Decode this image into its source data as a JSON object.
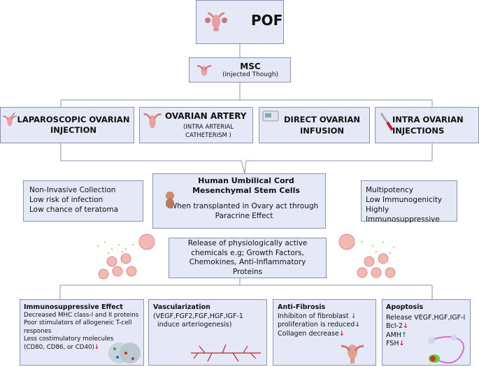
{
  "top": {
    "title": "POF"
  },
  "msc": {
    "title": "MSC",
    "subtitle": "(Injected Though)"
  },
  "routes": [
    {
      "title": "LAPAROSCOPIC OVARIAN INJECTION",
      "icon": "uterus-syringe-icon"
    },
    {
      "title": "OVARIAN ARTERY",
      "subtitle": "(INTRA ARTERIAL CATHETERISM )",
      "icon": "uterus-icon"
    },
    {
      "title": "DIRECT OVARIAN INFUSION",
      "icon": "infusion-pump-icon"
    },
    {
      "title": "INTRA OVARIAN INJECTIONS",
      "icon": "syringe-icon"
    }
  ],
  "center": {
    "title": "Human Umbilical Cord Mesenchymal Stem Cells",
    "body": "When transplanted in Ovary act through Paracrine Effect"
  },
  "left_props": [
    "Non-Invasive Collection",
    "Low risk of infection",
    "Low chance of teratoma"
  ],
  "right_props": [
    "Multipotency",
    "Low Immunogenicity",
    "Highly Immunosuppressive"
  ],
  "release": {
    "text": "Release of physiologically active chemicals e.g; Growth Factors, Chemokines, Anti-Inflammatory Proteins"
  },
  "effects": [
    {
      "title": "Immunosuppressive Effect",
      "lines": [
        "Decreased MHC class-I and II proteins",
        "Poor stimulators of allogeneic T-cell respones",
        "Less costimulatory molecules",
        "(CD80, CD86, or CD40)"
      ],
      "arrow": "↓"
    },
    {
      "title": "Vascularization",
      "lines": [
        "(VEGF,FGF2,FGF,HGF,IGF-1",
        "induce arteriogenesis)"
      ]
    },
    {
      "title": "Anti-Fibrosis",
      "lines": [
        "Inhibiton of fibroblast",
        "proliferation is reduced",
        "Collagen decrease"
      ],
      "arrows": [
        "↓",
        "↓",
        "↓"
      ]
    },
    {
      "title": "Apoptosis",
      "lines": [
        "Release VEGF,HGF,IGF-I",
        "BcI-2",
        "AMH",
        "FSH"
      ],
      "arrows": [
        "↓",
        "↑",
        "↓"
      ]
    }
  ],
  "colors": {
    "box_fill": "#e4e8f7",
    "box_border": "#8d91b3",
    "down": "#d0202a",
    "up": "#1b8a4a"
  }
}
